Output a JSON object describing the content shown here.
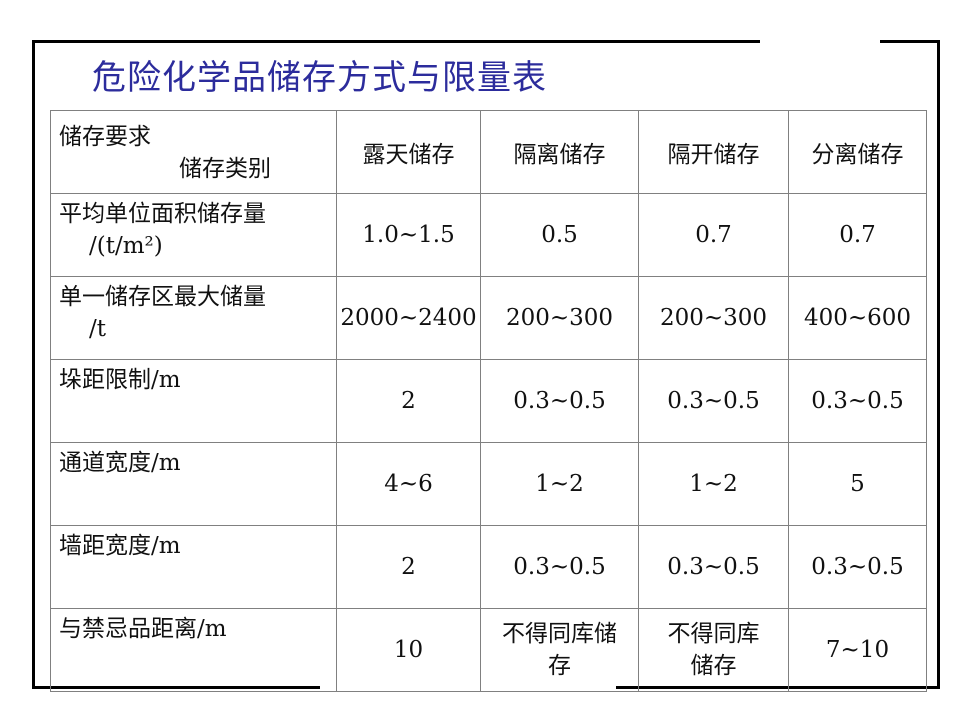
{
  "title": "危险化学品储存方式与限量表",
  "table": {
    "corner_top": "储存要求",
    "corner_bottom": "储存类别",
    "columns": [
      "露天储存",
      "隔离储存",
      "隔开储存",
      "分离储存"
    ],
    "rows": [
      {
        "label_line1": "平均单位面积储存量",
        "label_line2": "/(t/m²)",
        "cells": [
          "1.0~1.5",
          "0.5",
          "0.7",
          "0.7"
        ]
      },
      {
        "label_line1": "单一储存区最大储量",
        "label_line2": "/t",
        "cells": [
          "2000~2400",
          "200~300",
          "200~300",
          "400~600"
        ]
      },
      {
        "label_line1": "垛距限制/m",
        "label_line2": "",
        "cells": [
          "2",
          "0.3~0.5",
          "0.3~0.5",
          "0.3~0.5"
        ]
      },
      {
        "label_line1": "通道宽度/m",
        "label_line2": "",
        "cells": [
          "4~6",
          "1~2",
          "1~2",
          "5"
        ]
      },
      {
        "label_line1": "墙距宽度/m",
        "label_line2": "",
        "cells": [
          "2",
          "0.3~0.5",
          "0.3~0.5",
          "0.3~0.5"
        ]
      },
      {
        "label_line1": "与禁忌品距离/m",
        "label_line2": "",
        "cells_wrapped": [
          [
            "10"
          ],
          [
            "不得同库储",
            "存"
          ],
          [
            "不得同库",
            "储存"
          ],
          [
            "7~10"
          ]
        ]
      }
    ]
  }
}
